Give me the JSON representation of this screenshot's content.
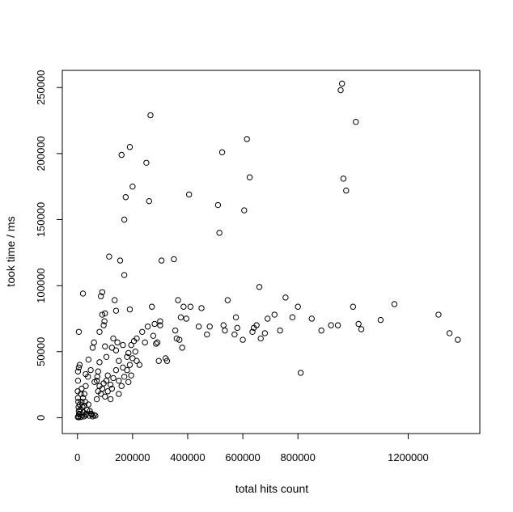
{
  "chart_data": {
    "type": "scatter",
    "title": "",
    "xlabel": "total hits count",
    "ylabel": "took time / ms",
    "xlim": [
      -55000,
      1460000
    ],
    "ylim": [
      -12000,
      263000
    ],
    "xticks": [
      0,
      200000,
      400000,
      600000,
      800000,
      1200000
    ],
    "xtick_labels": [
      "0",
      "200000",
      "400000",
      "600000",
      "800000",
      "1200000"
    ],
    "yticks": [
      0,
      50000,
      100000,
      150000,
      200000,
      250000
    ],
    "ytick_labels": [
      "0",
      "50000",
      "100000",
      "150000",
      "200000",
      "250000"
    ],
    "grid": false,
    "legend": "none",
    "marker": "open-circle",
    "points": [
      [
        5000,
        65000
      ],
      [
        2000,
        35000
      ],
      [
        5000,
        38000
      ],
      [
        2000,
        28000
      ],
      [
        8000,
        40000
      ],
      [
        20000,
        94000
      ],
      [
        15000,
        22000
      ],
      [
        25000,
        18000
      ],
      [
        30000,
        24000
      ],
      [
        30000,
        33000
      ],
      [
        38000,
        31000
      ],
      [
        40000,
        44000
      ],
      [
        48000,
        36000
      ],
      [
        55000,
        53000
      ],
      [
        60000,
        57000
      ],
      [
        62000,
        27000
      ],
      [
        70000,
        28000
      ],
      [
        72000,
        31000
      ],
      [
        75000,
        35000
      ],
      [
        80000,
        42000
      ],
      [
        80000,
        65000
      ],
      [
        85000,
        92000
      ],
      [
        90000,
        95000
      ],
      [
        90000,
        78000
      ],
      [
        95000,
        70000
      ],
      [
        98000,
        73000
      ],
      [
        100000,
        79000
      ],
      [
        100000,
        54000
      ],
      [
        105000,
        46000
      ],
      [
        105000,
        28000
      ],
      [
        110000,
        32000
      ],
      [
        115000,
        122000
      ],
      [
        120000,
        14000
      ],
      [
        125000,
        22000
      ],
      [
        125000,
        53000
      ],
      [
        130000,
        60000
      ],
      [
        135000,
        89000
      ],
      [
        140000,
        81000
      ],
      [
        140000,
        51000
      ],
      [
        145000,
        57000
      ],
      [
        150000,
        43000
      ],
      [
        150000,
        28000
      ],
      [
        155000,
        119000
      ],
      [
        160000,
        199000
      ],
      [
        165000,
        38000
      ],
      [
        165000,
        55000
      ],
      [
        170000,
        150000
      ],
      [
        170000,
        108000
      ],
      [
        175000,
        167000
      ],
      [
        180000,
        46000
      ],
      [
        185000,
        27000
      ],
      [
        185000,
        49000
      ],
      [
        190000,
        205000
      ],
      [
        190000,
        82000
      ],
      [
        195000,
        32000
      ],
      [
        195000,
        55000
      ],
      [
        200000,
        175000
      ],
      [
        205000,
        58000
      ],
      [
        210000,
        50000
      ],
      [
        215000,
        43000
      ],
      [
        215000,
        60000
      ],
      [
        225000,
        40000
      ],
      [
        235000,
        65000
      ],
      [
        245000,
        57000
      ],
      [
        250000,
        193000
      ],
      [
        255000,
        69000
      ],
      [
        260000,
        164000
      ],
      [
        265000,
        229000
      ],
      [
        270000,
        84000
      ],
      [
        275000,
        62000
      ],
      [
        280000,
        71000
      ],
      [
        285000,
        56000
      ],
      [
        290000,
        57000
      ],
      [
        295000,
        43000
      ],
      [
        300000,
        73000
      ],
      [
        300000,
        70000
      ],
      [
        305000,
        119000
      ],
      [
        320000,
        45000
      ],
      [
        325000,
        43000
      ],
      [
        350000,
        120000
      ],
      [
        355000,
        66000
      ],
      [
        360000,
        60000
      ],
      [
        365000,
        89000
      ],
      [
        370000,
        59000
      ],
      [
        375000,
        76000
      ],
      [
        380000,
        53000
      ],
      [
        385000,
        84000
      ],
      [
        395000,
        75000
      ],
      [
        405000,
        169000
      ],
      [
        410000,
        84000
      ],
      [
        440000,
        69000
      ],
      [
        450000,
        83000
      ],
      [
        470000,
        63000
      ],
      [
        480000,
        69000
      ],
      [
        510000,
        161000
      ],
      [
        515000,
        140000
      ],
      [
        525000,
        201000
      ],
      [
        530000,
        70000
      ],
      [
        535000,
        66000
      ],
      [
        545000,
        89000
      ],
      [
        570000,
        63000
      ],
      [
        575000,
        76000
      ],
      [
        580000,
        68000
      ],
      [
        600000,
        59000
      ],
      [
        605000,
        157000
      ],
      [
        615000,
        211000
      ],
      [
        625000,
        182000
      ],
      [
        635000,
        65000
      ],
      [
        640000,
        68000
      ],
      [
        650000,
        70000
      ],
      [
        660000,
        99000
      ],
      [
        665000,
        60000
      ],
      [
        680000,
        64000
      ],
      [
        690000,
        75000
      ],
      [
        715000,
        78000
      ],
      [
        735000,
        66000
      ],
      [
        755000,
        91000
      ],
      [
        780000,
        76000
      ],
      [
        800000,
        84000
      ],
      [
        810000,
        34000
      ],
      [
        850000,
        75000
      ],
      [
        885000,
        66000
      ],
      [
        920000,
        70000
      ],
      [
        945000,
        70000
      ],
      [
        955000,
        248000
      ],
      [
        960000,
        253000
      ],
      [
        965000,
        181000
      ],
      [
        975000,
        172000
      ],
      [
        1000000,
        84000
      ],
      [
        1010000,
        224000
      ],
      [
        1020000,
        71000
      ],
      [
        1030000,
        67000
      ],
      [
        1100000,
        74000
      ],
      [
        1150000,
        86000
      ],
      [
        1310000,
        78000
      ],
      [
        1350000,
        64000
      ],
      [
        1380000,
        59000
      ],
      [
        1000,
        20000
      ],
      [
        2000,
        15000
      ],
      [
        3000,
        12000
      ],
      [
        4000,
        8000
      ],
      [
        5000,
        5000
      ],
      [
        6000,
        3000
      ],
      [
        8000,
        10000
      ],
      [
        10000,
        6000
      ],
      [
        12000,
        18000
      ],
      [
        15000,
        12000
      ],
      [
        18000,
        8000
      ],
      [
        20000,
        15000
      ],
      [
        22000,
        4000
      ],
      [
        25000,
        9000
      ],
      [
        28000,
        12000
      ],
      [
        30000,
        2000
      ],
      [
        35000,
        6000
      ],
      [
        40000,
        10000
      ],
      [
        45000,
        5000
      ],
      [
        50000,
        3000
      ],
      [
        55000,
        1000
      ],
      [
        60000,
        2000
      ],
      [
        65000,
        1500
      ],
      [
        70000,
        14000
      ],
      [
        75000,
        20000
      ],
      [
        80000,
        24000
      ],
      [
        85000,
        18000
      ],
      [
        90000,
        22000
      ],
      [
        95000,
        26000
      ],
      [
        100000,
        16000
      ],
      [
        110000,
        20000
      ],
      [
        120000,
        25000
      ],
      [
        130000,
        30000
      ],
      [
        140000,
        36000
      ],
      [
        150000,
        18000
      ],
      [
        160000,
        24000
      ],
      [
        170000,
        31000
      ],
      [
        180000,
        36000
      ],
      [
        190000,
        40000
      ],
      [
        200000,
        45000
      ],
      [
        3000,
        1000
      ],
      [
        7000,
        2500
      ],
      [
        12000,
        500
      ],
      [
        18000,
        2000
      ],
      [
        24000,
        1000
      ],
      [
        32000,
        3000
      ],
      [
        42000,
        1500
      ],
      [
        52000,
        2500
      ],
      [
        1500,
        500
      ],
      [
        4000,
        300
      ]
    ]
  }
}
